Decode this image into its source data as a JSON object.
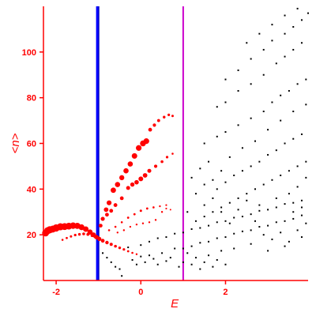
{
  "chart_data": {
    "type": "scatter",
    "title": "",
    "xlabel": "E",
    "ylabel": "<n>",
    "xlim": [
      -2.3,
      3.95
    ],
    "ylim": [
      0,
      120
    ],
    "x_ticks": [
      -2,
      0,
      2
    ],
    "y_ticks": [
      20,
      40,
      60,
      80,
      100
    ],
    "grid": false,
    "colors": {
      "axis": "#ff0000",
      "highlight_points": "#ff0000",
      "background_points": "#000000",
      "vline_left_outer": "#0000ff",
      "vline_left_inner": "#0000a0",
      "vline_right": "#cc00cc"
    },
    "vertical_lines": [
      {
        "x": -1.02,
        "color": "#0000ff"
      },
      {
        "x": 1.0,
        "color": "#cc00cc"
      }
    ],
    "series": [
      {
        "points": [
          [
            -2.25,
            20.8,
            4.4
          ],
          [
            -2.2,
            21.8,
            4.5
          ],
          [
            -2.15,
            22.2,
            4.6
          ],
          [
            -2.08,
            22.5,
            4.4
          ],
          [
            -2.0,
            23.0,
            4.6
          ],
          [
            -1.9,
            23.5,
            4.5
          ],
          [
            -1.8,
            23.6,
            4.4
          ],
          [
            -1.7,
            23.8,
            4.3
          ],
          [
            -1.6,
            24.0,
            4.1
          ],
          [
            -1.5,
            23.9,
            3.9
          ],
          [
            -1.4,
            23.3,
            3.7
          ],
          [
            -1.3,
            22.5,
            3.5
          ],
          [
            -1.2,
            21.2,
            3.3
          ],
          [
            -1.12,
            20.0,
            3.1
          ],
          [
            -1.05,
            19.0,
            2.8
          ],
          [
            -0.98,
            18.2,
            2.6
          ],
          [
            -0.9,
            17.4,
            2.4
          ],
          [
            -0.8,
            16.6,
            2.2
          ],
          [
            -0.7,
            15.8,
            2.0
          ],
          [
            -0.6,
            15.0,
            1.8
          ],
          [
            -0.5,
            14.3,
            1.7
          ],
          [
            -0.4,
            13.6,
            1.6
          ],
          [
            -0.3,
            12.8,
            1.4
          ],
          [
            -0.2,
            12.1,
            1.3
          ],
          [
            -0.1,
            11.5,
            1.2
          ],
          [
            -1.85,
            17.8,
            1.3
          ],
          [
            -1.75,
            18.6,
            1.4
          ],
          [
            -1.65,
            19.3,
            1.5
          ],
          [
            -1.55,
            19.9,
            1.6
          ],
          [
            -1.45,
            20.2,
            1.7
          ],
          [
            -1.35,
            20.4,
            1.8
          ],
          [
            -1.25,
            20.2,
            1.9
          ],
          [
            -1.15,
            19.7,
            2.0
          ],
          [
            -1.08,
            19.2,
            2.0
          ],
          [
            -1.0,
            18.6,
            2.0
          ],
          [
            -0.95,
            24.0,
            2.4
          ],
          [
            -0.9,
            27.0,
            2.6
          ],
          [
            -0.82,
            31.0,
            2.9
          ],
          [
            -0.75,
            34.0,
            3.1
          ],
          [
            -0.65,
            39.5,
            3.4
          ],
          [
            -0.55,
            42.0,
            3.3
          ],
          [
            -0.45,
            45.0,
            3.2
          ],
          [
            -0.35,
            48.0,
            3.3
          ],
          [
            -0.25,
            51.0,
            3.3
          ],
          [
            -0.15,
            54.5,
            3.5
          ],
          [
            -0.05,
            58.0,
            3.6
          ],
          [
            0.05,
            60.0,
            3.7
          ],
          [
            0.13,
            61.0,
            3.6
          ],
          [
            0.22,
            66.0,
            2.4
          ],
          [
            0.32,
            68.0,
            2.1
          ],
          [
            0.42,
            70.0,
            1.9
          ],
          [
            0.55,
            71.5,
            1.7
          ],
          [
            0.66,
            72.5,
            1.6
          ],
          [
            0.75,
            72.0,
            1.5
          ],
          [
            -0.8,
            28.8,
            2.4
          ],
          [
            -0.7,
            30.5,
            2.4
          ],
          [
            -0.6,
            33.0,
            2.4
          ],
          [
            -0.45,
            36.0,
            2.4
          ],
          [
            -0.3,
            40.5,
            2.5
          ],
          [
            -0.2,
            42.0,
            2.7
          ],
          [
            -0.1,
            43.0,
            2.8
          ],
          [
            0.0,
            44.5,
            3.0
          ],
          [
            0.1,
            46.0,
            2.9
          ],
          [
            0.2,
            48.0,
            2.5
          ],
          [
            0.35,
            50.0,
            2.1
          ],
          [
            0.5,
            52.0,
            1.8
          ],
          [
            0.62,
            54.0,
            1.6
          ],
          [
            0.75,
            55.5,
            1.3
          ],
          [
            -0.75,
            22.0,
            1.3
          ],
          [
            -0.6,
            23.5,
            1.3
          ],
          [
            -0.45,
            25.5,
            1.3
          ],
          [
            -0.3,
            27.5,
            1.4
          ],
          [
            -0.15,
            29.0,
            1.4
          ],
          [
            0.0,
            30.5,
            1.5
          ],
          [
            0.15,
            31.5,
            1.4
          ],
          [
            0.3,
            32.0,
            1.3
          ],
          [
            0.45,
            32.5,
            1.2
          ],
          [
            0.6,
            33.0,
            1.1
          ],
          [
            -0.55,
            21.0,
            1.2
          ],
          [
            -0.4,
            22.0,
            1.2
          ],
          [
            -0.25,
            23.5,
            1.2
          ],
          [
            -0.1,
            24.5,
            1.2
          ],
          [
            0.05,
            25.0,
            1.2
          ],
          [
            0.2,
            25.5,
            1.2
          ],
          [
            0.35,
            26.5,
            1.2
          ],
          [
            0.5,
            30.0,
            1.2
          ],
          [
            0.6,
            31.5,
            1.1
          ],
          [
            0.7,
            31.0,
            1.0
          ]
        ],
        "color": "#ff0000"
      },
      {
        "points": [
          [
            -0.9,
            12.0
          ],
          [
            -0.8,
            10.0
          ],
          [
            -0.7,
            8.0
          ],
          [
            -0.6,
            6.0
          ],
          [
            -0.5,
            5.0
          ],
          [
            -0.45,
            2.0
          ],
          [
            -0.3,
            14.5
          ],
          [
            -0.2,
            9.0
          ],
          [
            -0.1,
            7.0
          ],
          [
            0.0,
            10.5
          ],
          [
            0.1,
            8.0
          ],
          [
            0.2,
            11.0
          ],
          [
            0.3,
            9.5
          ],
          [
            0.4,
            7.0
          ],
          [
            0.5,
            12.0
          ],
          [
            0.6,
            8.5
          ],
          [
            0.7,
            10.0
          ],
          [
            0.8,
            14.0
          ],
          [
            0.9,
            6.0
          ],
          [
            1.0,
            8.0
          ],
          [
            1.1,
            12.0
          ],
          [
            1.2,
            7.0
          ],
          [
            1.3,
            10.0
          ],
          [
            1.4,
            5.0
          ],
          [
            1.5,
            8.0
          ],
          [
            1.6,
            11.0
          ],
          [
            1.7,
            6.0
          ],
          [
            1.8,
            9.0
          ],
          [
            1.9,
            13.0
          ],
          [
            2.0,
            7.0
          ],
          [
            0.0,
            15.5
          ],
          [
            0.2,
            17.0
          ],
          [
            0.4,
            18.5
          ],
          [
            0.6,
            19.0
          ],
          [
            0.8,
            20.5
          ],
          [
            1.0,
            21.0
          ],
          [
            1.2,
            22.5
          ],
          [
            1.4,
            23.0
          ],
          [
            1.6,
            24.0
          ],
          [
            1.8,
            25.5
          ],
          [
            2.0,
            26.0
          ],
          [
            2.2,
            27.5
          ],
          [
            2.4,
            28.0
          ],
          [
            2.6,
            29.0
          ],
          [
            2.8,
            30.5
          ],
          [
            3.0,
            31.0
          ],
          [
            3.2,
            32.0
          ],
          [
            3.4,
            33.5
          ],
          [
            3.6,
            34.0
          ],
          [
            3.8,
            35.0
          ],
          [
            1.0,
            14.0
          ],
          [
            1.2,
            15.0
          ],
          [
            1.4,
            16.5
          ],
          [
            1.6,
            17.0
          ],
          [
            1.8,
            18.5
          ],
          [
            2.0,
            19.0
          ],
          [
            2.2,
            20.5
          ],
          [
            2.4,
            21.5
          ],
          [
            2.6,
            22.0
          ],
          [
            2.8,
            23.5
          ],
          [
            3.0,
            24.0
          ],
          [
            3.2,
            25.5
          ],
          [
            3.4,
            26.0
          ],
          [
            3.6,
            27.0
          ],
          [
            3.8,
            28.5
          ],
          [
            1.5,
            28.0
          ],
          [
            1.7,
            30.0
          ],
          [
            1.9,
            32.0
          ],
          [
            2.1,
            34.0
          ],
          [
            2.3,
            36.0
          ],
          [
            2.5,
            38.0
          ],
          [
            2.7,
            40.0
          ],
          [
            2.9,
            42.0
          ],
          [
            3.1,
            44.0
          ],
          [
            3.3,
            46.0
          ],
          [
            3.5,
            48.0
          ],
          [
            3.7,
            50.0
          ],
          [
            3.9,
            52.0
          ],
          [
            1.8,
            40.0
          ],
          [
            2.0,
            43.0
          ],
          [
            2.2,
            46.0
          ],
          [
            2.4,
            48.0
          ],
          [
            2.6,
            50.0
          ],
          [
            2.8,
            52.0
          ],
          [
            3.0,
            55.0
          ],
          [
            3.2,
            57.0
          ],
          [
            3.4,
            60.0
          ],
          [
            3.6,
            62.0
          ],
          [
            3.8,
            64.0
          ],
          [
            1.5,
            60.0
          ],
          [
            1.8,
            63.0
          ],
          [
            2.0,
            65.0
          ],
          [
            2.3,
            68.0
          ],
          [
            2.6,
            71.0
          ],
          [
            2.9,
            74.0
          ],
          [
            3.1,
            78.0
          ],
          [
            3.3,
            81.0
          ],
          [
            3.5,
            83.0
          ],
          [
            3.7,
            86.0
          ],
          [
            3.9,
            88.0
          ],
          [
            1.8,
            76.0
          ],
          [
            2.0,
            78.0
          ],
          [
            2.3,
            83.0
          ],
          [
            2.6,
            86.0
          ],
          [
            2.9,
            90.0
          ],
          [
            3.2,
            95.0
          ],
          [
            3.4,
            98.0
          ],
          [
            3.6,
            101.0
          ],
          [
            3.8,
            104.0
          ],
          [
            2.0,
            88.0
          ],
          [
            2.3,
            92.0
          ],
          [
            2.6,
            97.0
          ],
          [
            2.9,
            101.0
          ],
          [
            3.1,
            105.0
          ],
          [
            3.4,
            108.0
          ],
          [
            3.6,
            111.0
          ],
          [
            3.8,
            114.0
          ],
          [
            3.95,
            117.0
          ],
          [
            2.5,
            104.0
          ],
          [
            2.8,
            108.0
          ],
          [
            3.1,
            112.0
          ],
          [
            3.4,
            116.0
          ],
          [
            3.7,
            119.0
          ],
          [
            1.2,
            45.0
          ],
          [
            1.4,
            49.0
          ],
          [
            1.6,
            52.0
          ],
          [
            1.3,
            38.0
          ],
          [
            1.5,
            42.0
          ],
          [
            1.7,
            36.0
          ],
          [
            1.9,
            30.0
          ],
          [
            2.1,
            25.0
          ],
          [
            2.3,
            31.0
          ],
          [
            2.5,
            35.0
          ],
          [
            2.7,
            26.0
          ],
          [
            2.9,
            20.0
          ],
          [
            3.1,
            18.0
          ],
          [
            3.3,
            21.0
          ],
          [
            3.5,
            17.0
          ],
          [
            3.7,
            22.0
          ],
          [
            3.9,
            25.0
          ],
          [
            2.2,
            14.0
          ],
          [
            2.6,
            16.0
          ],
          [
            3.0,
            13.0
          ],
          [
            3.4,
            15.0
          ],
          [
            3.8,
            19.0
          ],
          [
            1.1,
            30.0
          ],
          [
            1.3,
            26.0
          ],
          [
            1.5,
            33.0
          ],
          [
            1.7,
            44.0
          ],
          [
            1.9,
            48.0
          ],
          [
            2.1,
            54.0
          ],
          [
            2.4,
            58.0
          ],
          [
            2.7,
            61.0
          ],
          [
            3.0,
            66.0
          ],
          [
            3.3,
            70.0
          ],
          [
            3.6,
            74.0
          ],
          [
            3.9,
            77.0
          ],
          [
            3.5,
            38.0
          ],
          [
            3.7,
            41.0
          ],
          [
            3.9,
            45.0
          ],
          [
            3.2,
            36.0
          ],
          [
            2.8,
            33.0
          ],
          [
            3.6,
            30.0
          ],
          [
            3.8,
            32.0
          ]
        ],
        "color": "#000000"
      }
    ]
  }
}
